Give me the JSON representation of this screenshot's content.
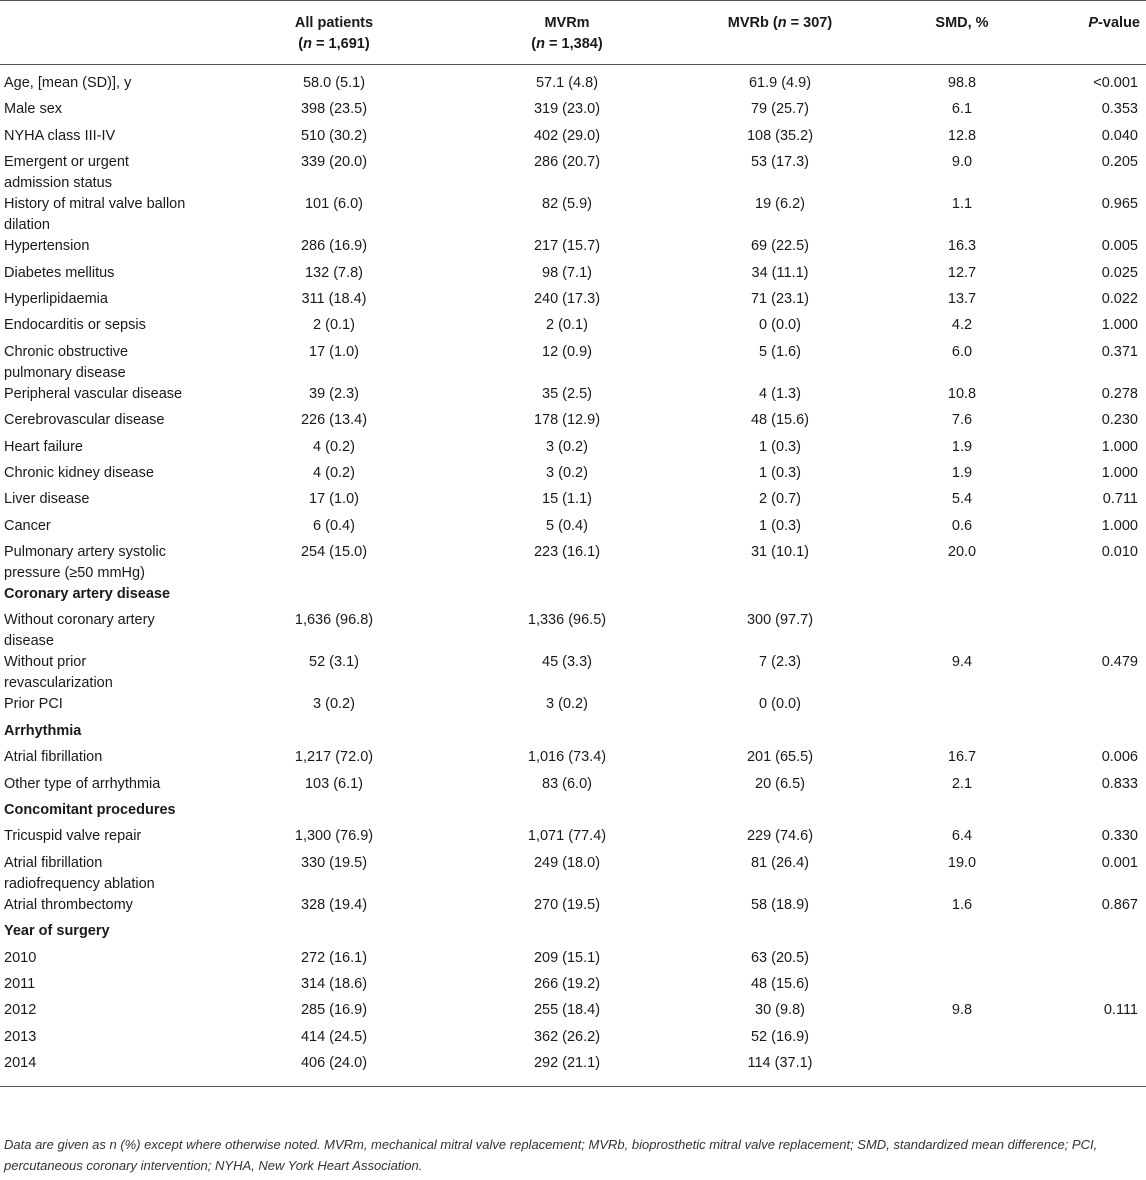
{
  "table": {
    "headers": {
      "label": "",
      "all": [
        "All patients",
        "(n = 1,691)"
      ],
      "mvrm": [
        "MVRm",
        "(n = 1,384)"
      ],
      "mvrb": [
        "MVRb (n = 307)"
      ],
      "smd": "SMD, %",
      "p": "P-value"
    },
    "rows": [
      {
        "type": "data",
        "label": "Age, [mean (SD)], y",
        "all": "58.0 (5.1)",
        "mvrm": "57.1 (4.8)",
        "mvrb": "61.9 (4.9)",
        "smd": "98.8",
        "p": "<0.001"
      },
      {
        "type": "data",
        "label": "Male sex",
        "all": "398 (23.5)",
        "mvrm": "319 (23.0)",
        "mvrb": "79 (25.7)",
        "smd": "6.1",
        "p": "0.353"
      },
      {
        "type": "data",
        "label": "NYHA class III-IV",
        "all": "510 (30.2)",
        "mvrm": "402 (29.0)",
        "mvrb": "108 (35.2)",
        "smd": "12.8",
        "p": "0.040"
      },
      {
        "type": "data",
        "label": "Emergent or urgent admission status",
        "all": "339 (20.0)",
        "mvrm": "286 (20.7)",
        "mvrb": "53 (17.3)",
        "smd": "9.0",
        "p": "0.205"
      },
      {
        "type": "data",
        "label": "History of mitral valve ballon dilation",
        "all": "101 (6.0)",
        "mvrm": "82 (5.9)",
        "mvrb": "19 (6.2)",
        "smd": "1.1",
        "p": "0.965"
      },
      {
        "type": "data",
        "label": "Hypertension",
        "all": "286 (16.9)",
        "mvrm": "217 (15.7)",
        "mvrb": "69 (22.5)",
        "smd": "16.3",
        "p": "0.005"
      },
      {
        "type": "data",
        "label": "Diabetes mellitus",
        "all": "132 (7.8)",
        "mvrm": "98 (7.1)",
        "mvrb": "34 (11.1)",
        "smd": "12.7",
        "p": "0.025"
      },
      {
        "type": "data",
        "label": "Hyperlipidaemia",
        "all": "311 (18.4)",
        "mvrm": "240 (17.3)",
        "mvrb": "71 (23.1)",
        "smd": "13.7",
        "p": "0.022"
      },
      {
        "type": "data",
        "label": "Endocarditis or sepsis",
        "all": "2 (0.1)",
        "mvrm": "2 (0.1)",
        "mvrb": "0 (0.0)",
        "smd": "4.2",
        "p": "1.000"
      },
      {
        "type": "data",
        "label": "Chronic obstructive pulmonary disease",
        "all": "17 (1.0)",
        "mvrm": "12 (0.9)",
        "mvrb": "5 (1.6)",
        "smd": "6.0",
        "p": "0.371"
      },
      {
        "type": "data",
        "label": "Peripheral vascular disease",
        "all": "39 (2.3)",
        "mvrm": "35 (2.5)",
        "mvrb": "4 (1.3)",
        "smd": "10.8",
        "p": "0.278"
      },
      {
        "type": "data",
        "label": "Cerebrovascular disease",
        "all": "226 (13.4)",
        "mvrm": "178 (12.9)",
        "mvrb": "48 (15.6)",
        "smd": "7.6",
        "p": "0.230"
      },
      {
        "type": "data",
        "label": "Heart failure",
        "all": "4 (0.2)",
        "mvrm": "3 (0.2)",
        "mvrb": "1 (0.3)",
        "smd": "1.9",
        "p": "1.000"
      },
      {
        "type": "data",
        "label": "Chronic kidney disease",
        "all": "4 (0.2)",
        "mvrm": "3 (0.2)",
        "mvrb": "1 (0.3)",
        "smd": "1.9",
        "p": "1.000"
      },
      {
        "type": "data",
        "label": "Liver disease",
        "all": "17 (1.0)",
        "mvrm": "15 (1.1)",
        "mvrb": "2 (0.7)",
        "smd": "5.4",
        "p": "0.711"
      },
      {
        "type": "data",
        "label": "Cancer",
        "all": "6 (0.4)",
        "mvrm": "5 (0.4)",
        "mvrb": "1 (0.3)",
        "smd": "0.6",
        "p": "1.000"
      },
      {
        "type": "data",
        "label": "Pulmonary artery systolic pressure (≥50 mmHg)",
        "all": "254 (15.0)",
        "mvrm": "223 (16.1)",
        "mvrb": "31 (10.1)",
        "smd": "20.0",
        "p": "0.010"
      },
      {
        "type": "section",
        "label": "Coronary artery disease"
      },
      {
        "type": "data",
        "label": "Without coronary artery disease",
        "all": "1,636 (96.8)",
        "mvrm": "1,336 (96.5)",
        "mvrb": "300 (97.7)",
        "smd": "",
        "p": ""
      },
      {
        "type": "data",
        "label": "Without prior revascularization",
        "all": "52 (3.1)",
        "mvrm": "45 (3.3)",
        "mvrb": "7 (2.3)",
        "smd": "9.4",
        "p": "0.479"
      },
      {
        "type": "data",
        "label": "Prior PCI",
        "all": "3 (0.2)",
        "mvrm": "3 (0.2)",
        "mvrb": "0 (0.0)",
        "smd": "",
        "p": ""
      },
      {
        "type": "section",
        "label": "Arrhythmia"
      },
      {
        "type": "data",
        "label": "Atrial fibrillation",
        "all": "1,217 (72.0)",
        "mvrm": "1,016 (73.4)",
        "mvrb": "201 (65.5)",
        "smd": "16.7",
        "p": "0.006"
      },
      {
        "type": "data",
        "label": "Other type of arrhythmia",
        "all": "103 (6.1)",
        "mvrm": "83 (6.0)",
        "mvrb": "20 (6.5)",
        "smd": "2.1",
        "p": "0.833"
      },
      {
        "type": "section",
        "label": "Concomitant procedures"
      },
      {
        "type": "data",
        "label": "Tricuspid valve repair",
        "all": "1,300 (76.9)",
        "mvrm": "1,071 (77.4)",
        "mvrb": "229 (74.6)",
        "smd": "6.4",
        "p": "0.330"
      },
      {
        "type": "data",
        "label": "Atrial fibrillation radiofrequency ablation",
        "all": "330 (19.5)",
        "mvrm": "249 (18.0)",
        "mvrb": "81 (26.4)",
        "smd": "19.0",
        "p": "0.001"
      },
      {
        "type": "data",
        "label": "Atrial thrombectomy",
        "all": "328 (19.4)",
        "mvrm": "270 (19.5)",
        "mvrb": "58 (18.9)",
        "smd": "1.6",
        "p": "0.867"
      },
      {
        "type": "section",
        "label": "Year of surgery"
      },
      {
        "type": "data",
        "label": "2010",
        "all": "272 (16.1)",
        "mvrm": "209 (15.1)",
        "mvrb": "63 (20.5)",
        "smd": "",
        "p": ""
      },
      {
        "type": "data",
        "label": "2011",
        "all": "314 (18.6)",
        "mvrm": "266 (19.2)",
        "mvrb": "48 (15.6)",
        "smd": "",
        "p": ""
      },
      {
        "type": "data",
        "label": "2012",
        "all": "285 (16.9)",
        "mvrm": "255 (18.4)",
        "mvrb": "30 (9.8)",
        "smd": "9.8",
        "p": "0.111"
      },
      {
        "type": "data",
        "label": "2013",
        "all": "414 (24.5)",
        "mvrm": "362 (26.2)",
        "mvrb": "52 (16.9)",
        "smd": "",
        "p": ""
      },
      {
        "type": "data",
        "label": "2014",
        "all": "406 (24.0)",
        "mvrm": "292 (21.1)",
        "mvrb": "114 (37.1)",
        "smd": "",
        "p": ""
      }
    ]
  },
  "footnote": "Data are given as n (%) except where otherwise noted. MVRm, mechanical mitral valve replacement; MVRb, bioprosthetic mitral valve replacement; SMD, standardized mean difference; PCI, percutaneous coronary intervention; NYHA, New York Heart Association."
}
